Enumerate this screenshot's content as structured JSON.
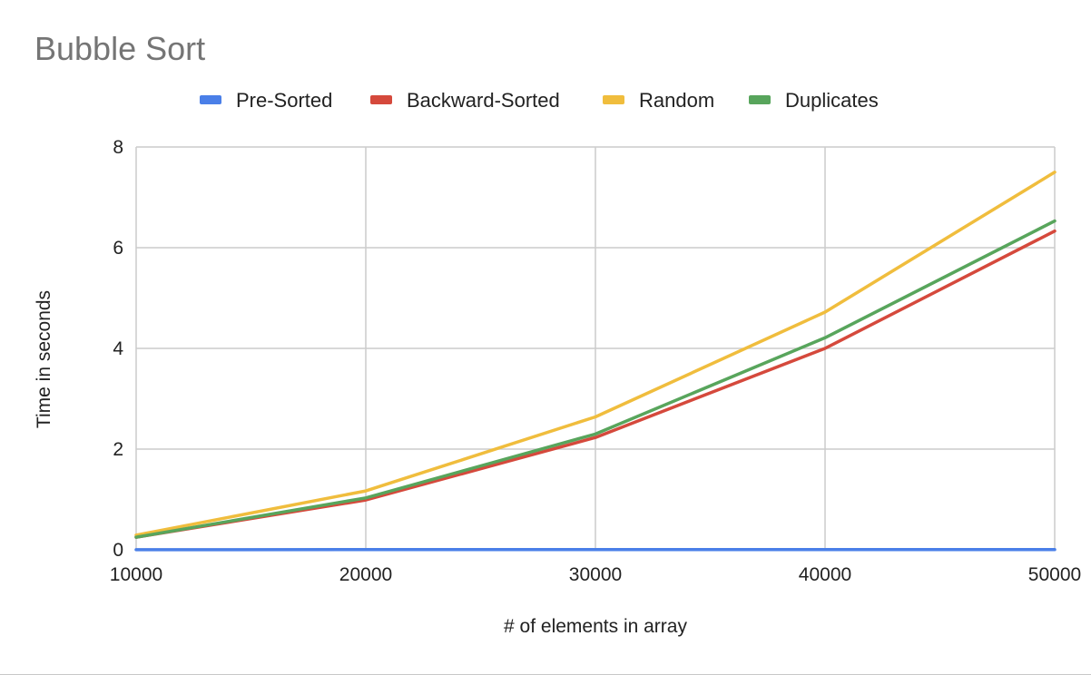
{
  "chart_data": {
    "type": "line",
    "title": "Bubble Sort",
    "xlabel": "# of elements in array",
    "ylabel": "Time in seconds",
    "x": [
      10000,
      20000,
      30000,
      40000,
      50000
    ],
    "xlim": [
      10000,
      50000
    ],
    "ylim": [
      0,
      8
    ],
    "xticks": [
      10000,
      20000,
      30000,
      40000,
      50000
    ],
    "yticks": [
      0,
      2,
      4,
      6,
      8
    ],
    "grid": true,
    "legend_position": "top",
    "series": [
      {
        "name": "Pre-Sorted",
        "color": "#4a7fe8",
        "values": [
          0.002,
          0.003,
          0.004,
          0.005,
          0.006
        ]
      },
      {
        "name": "Backward-Sorted",
        "color": "#d5493c",
        "values": [
          0.25,
          0.99,
          2.23,
          4.0,
          6.33
        ]
      },
      {
        "name": "Random",
        "color": "#f0bd3d",
        "values": [
          0.29,
          1.17,
          2.64,
          4.72,
          7.5
        ]
      },
      {
        "name": "Duplicates",
        "color": "#58a55c",
        "values": [
          0.25,
          1.03,
          2.3,
          4.21,
          6.53
        ]
      }
    ]
  }
}
